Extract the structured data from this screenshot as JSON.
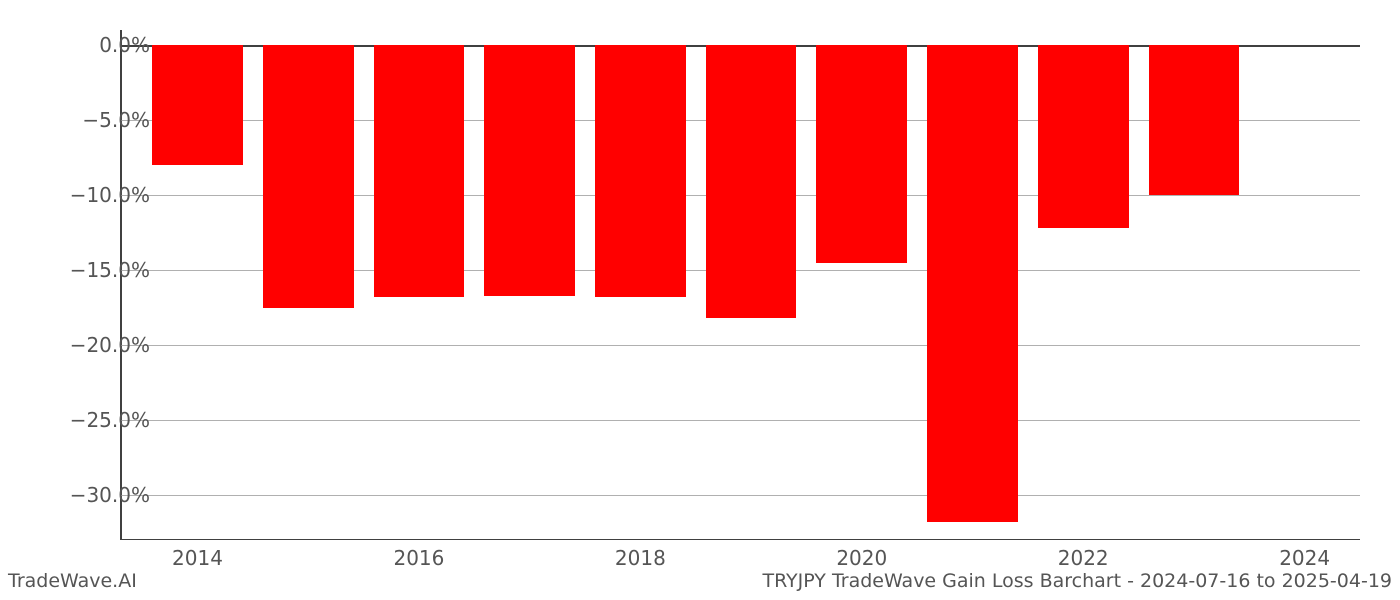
{
  "chart": {
    "type": "bar",
    "years": [
      2014,
      2015,
      2016,
      2017,
      2018,
      2019,
      2020,
      2021,
      2022,
      2023
    ],
    "values": [
      -8.0,
      -17.5,
      -16.8,
      -16.7,
      -16.8,
      -18.2,
      -14.5,
      -31.8,
      -12.2,
      -10.0
    ],
    "bar_color": "#ff0000",
    "background_color": "#ffffff",
    "grid_color": "#b0b0b0",
    "spine_color": "#404040",
    "ylim": [
      -33.0,
      1.0
    ],
    "yticks": [
      {
        "v": 0.0,
        "label": "0.0%"
      },
      {
        "v": -5.0,
        "label": "−5.0%"
      },
      {
        "v": -10.0,
        "label": "−10.0%"
      },
      {
        "v": -15.0,
        "label": "−15.0%"
      },
      {
        "v": -20.0,
        "label": "−20.0%"
      },
      {
        "v": -25.0,
        "label": "−25.0%"
      },
      {
        "v": -30.0,
        "label": "−30.0%"
      }
    ],
    "xticks": [
      {
        "v": 2014,
        "label": "2014"
      },
      {
        "v": 2016,
        "label": "2016"
      },
      {
        "v": 2018,
        "label": "2018"
      },
      {
        "v": 2020,
        "label": "2020"
      },
      {
        "v": 2022,
        "label": "2022"
      },
      {
        "v": 2024,
        "label": "2024"
      }
    ],
    "xlim": [
      2013.3,
      2024.5
    ],
    "bar_width": 0.82,
    "tick_fontsize": 20,
    "tick_color": "#555555",
    "footer_fontsize": 19
  },
  "footer": {
    "left": "TradeWave.AI",
    "right": "TRYJPY TradeWave Gain Loss Barchart - 2024-07-16 to 2025-04-19"
  }
}
